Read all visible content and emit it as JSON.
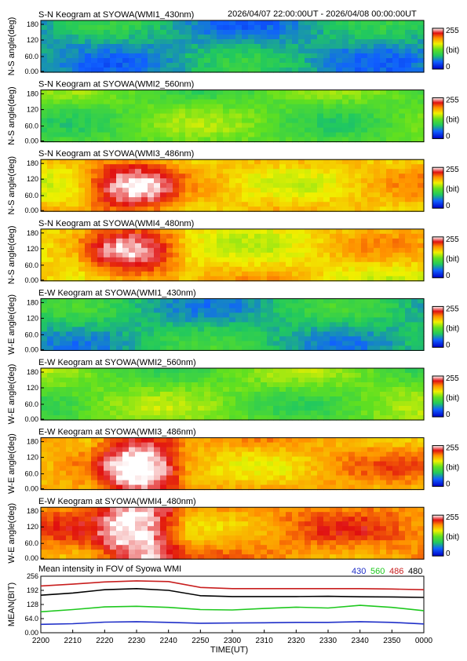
{
  "header": {
    "time_range": "2026/04/07 22:00:00UT - 2026/04/08 00:00:00UT"
  },
  "colorbar": {
    "max_label": "255",
    "unit_label": "(bit)",
    "min_label": "0"
  },
  "keograms": [
    {
      "title": "S-N Keogram at SYOWA(WMI1_430nm)",
      "ylabel": "N-S angle(deg)",
      "yticks": [
        "180",
        "120",
        "60.0",
        "0.00"
      ],
      "base_level": 70
    },
    {
      "title": "S-N Keogram at SYOWA(WMI2_560nm)",
      "ylabel": "N-S angle(deg)",
      "yticks": [
        "180",
        "120",
        "60.0",
        "0.00"
      ],
      "base_level": 115
    },
    {
      "title": "S-N Keogram at SYOWA(WMI3_486nm)",
      "ylabel": "N-S angle(deg)",
      "yticks": [
        "180",
        "120",
        "60.0",
        "0.00"
      ],
      "base_level": 175
    },
    {
      "title": "S-N Keogram at SYOWA(WMI4_480nm)",
      "ylabel": "N-S angle(deg)",
      "yticks": [
        "180",
        "120",
        "60.0",
        "0.00"
      ],
      "base_level": 170
    },
    {
      "title": "E-W Keogram at SYOWA(WMI1_430nm)",
      "ylabel": "W-E angle(deg)",
      "yticks": [
        "180",
        "120",
        "60.0",
        "0.00"
      ],
      "base_level": 80
    },
    {
      "title": "E-W Keogram at SYOWA(WMI2_560nm)",
      "ylabel": "W-E angle(deg)",
      "yticks": [
        "180",
        "120",
        "60.0",
        "0.00"
      ],
      "base_level": 120
    },
    {
      "title": "E-W Keogram at SYOWA(WMI3_486nm)",
      "ylabel": "W-E angle(deg)",
      "yticks": [
        "180",
        "120",
        "60.0",
        "0.00"
      ],
      "base_level": 185
    },
    {
      "title": "E-W Keogram at SYOWA(WMI4_480nm)",
      "ylabel": "W-E angle(deg)",
      "yticks": [
        "180",
        "120",
        "60.0",
        "0.00"
      ],
      "base_level": 195
    }
  ],
  "chart_data": {
    "type": "line",
    "title": "Mean intensity in FOV of Syowa WMI",
    "xlabel": "TIME(UT)",
    "ylabel": "MEAN(BIT)",
    "xticks": [
      "2200",
      "2210",
      "2220",
      "2230",
      "2240",
      "2250",
      "2300",
      "2310",
      "2320",
      "2330",
      "2340",
      "2350",
      "0000"
    ],
    "yticks": [
      "256",
      "192",
      "128",
      "64.0",
      "0.00"
    ],
    "ylim": [
      0,
      256
    ],
    "x_minutes_after_2200": [
      0,
      10,
      20,
      30,
      40,
      50,
      60,
      70,
      80,
      90,
      100,
      110,
      120
    ],
    "series": [
      {
        "name": "430",
        "color": "#1f2fc8",
        "values": [
          38,
          41,
          48,
          50,
          47,
          43,
          44,
          45,
          47,
          47,
          50,
          47,
          40
        ]
      },
      {
        "name": "560",
        "color": "#1ec81e",
        "values": [
          95,
          105,
          117,
          120,
          115,
          105,
          103,
          110,
          116,
          112,
          124,
          115,
          100
        ]
      },
      {
        "name": "486",
        "color": "#c81e1e",
        "values": [
          212,
          220,
          230,
          235,
          232,
          205,
          200,
          200,
          200,
          200,
          200,
          198,
          195
        ]
      },
      {
        "name": "480",
        "color": "#000000",
        "values": [
          170,
          180,
          195,
          200,
          192,
          168,
          164,
          164,
          164,
          165,
          163,
          162,
          160
        ]
      }
    ]
  }
}
